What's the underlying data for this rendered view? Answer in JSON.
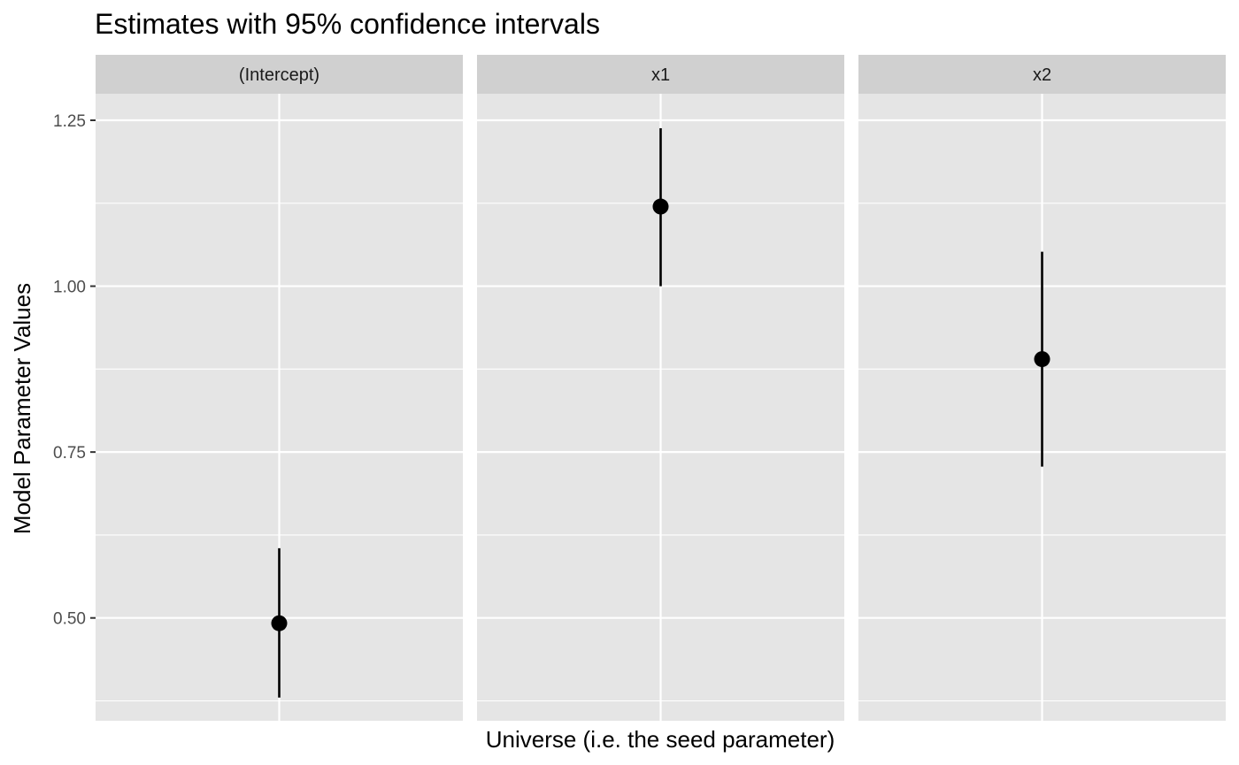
{
  "chart_data": {
    "type": "scatter",
    "subtype": "pointrange-facets",
    "title": "Estimates with 95% confidence intervals",
    "xlabel": "Universe (i.e. the seed parameter)",
    "ylabel": "Model Parameter Values",
    "ylim": [
      0.345,
      1.29
    ],
    "y_ticks": [
      {
        "value": 0.5,
        "label": "0.50"
      },
      {
        "value": 0.75,
        "label": "0.75"
      },
      {
        "value": 1.0,
        "label": "1.00"
      },
      {
        "value": 1.25,
        "label": "1.25"
      }
    ],
    "y_minor_ticks": [
      0.375,
      0.625,
      0.875,
      1.125
    ],
    "grid": true,
    "x_ticks_shown": false,
    "facets": [
      {
        "label": "(Intercept)",
        "estimate": 0.492,
        "lower": 0.38,
        "upper": 0.605
      },
      {
        "label": "x1",
        "estimate": 1.12,
        "lower": 1.0,
        "upper": 1.238
      },
      {
        "label": "x2",
        "estimate": 0.89,
        "lower": 0.728,
        "upper": 1.052
      }
    ],
    "colors": {
      "panel_background": "#e5e5e5",
      "strip_background": "#d0d0d0",
      "grid": "#ffffff",
      "point": "#000000",
      "tick_text": "#4d4d4d"
    }
  }
}
